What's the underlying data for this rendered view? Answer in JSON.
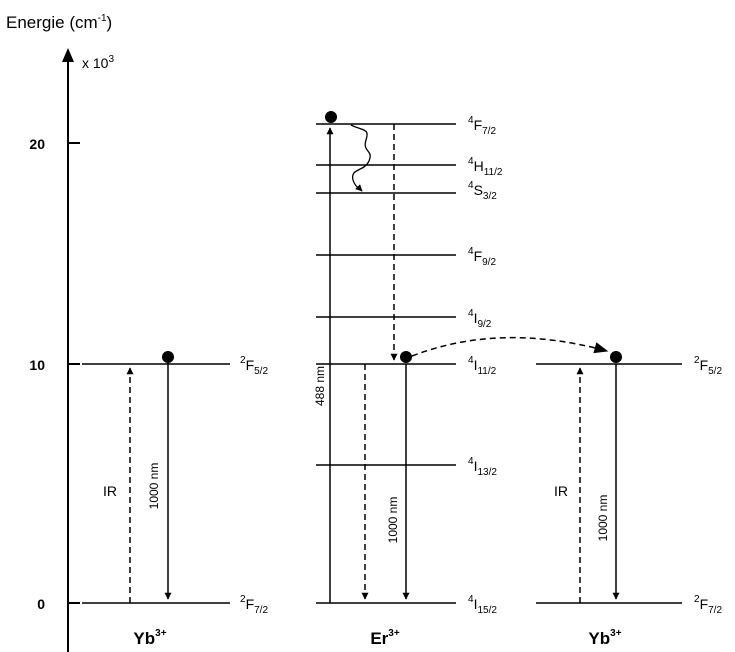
{
  "axis": {
    "title_main": "Energie (cm",
    "title_exp": "-1",
    "title_close": ")",
    "scale_prefix": "x 10",
    "scale_exp": "3",
    "ticks": [
      {
        "value": 0,
        "label": "0"
      },
      {
        "value": 10,
        "label": "10"
      },
      {
        "value": 20,
        "label": "20"
      }
    ]
  },
  "ions": [
    {
      "base": "Yb",
      "charge": "3+"
    },
    {
      "base": "Er",
      "charge": "3+"
    },
    {
      "base": "Yb",
      "charge": "3+"
    }
  ],
  "levels": {
    "yb_left": [
      {
        "energy": 0,
        "sup": "2",
        "letter": "F",
        "sub": "7/2"
      },
      {
        "energy": 10,
        "sup": "2",
        "letter": "F",
        "sub": "5/2"
      }
    ],
    "er": [
      {
        "energy": 0,
        "sup": "4",
        "letter": "I",
        "sub": "15/2"
      },
      {
        "energy": 5.8,
        "sup": "4",
        "letter": "I",
        "sub": "13/2"
      },
      {
        "energy": 10,
        "sup": "4",
        "letter": "I",
        "sub": "11/2"
      },
      {
        "energy": 12.2,
        "sup": "4",
        "letter": "I",
        "sub": "9/2"
      },
      {
        "energy": 14.9,
        "sup": "4",
        "letter": "F",
        "sub": "9/2"
      },
      {
        "energy": 17.9,
        "sup": "4",
        "letter": "S",
        "sub": "3/2"
      },
      {
        "energy": 19.1,
        "sup": "4",
        "letter": "H",
        "sub": "11/2"
      },
      {
        "energy": 20.8,
        "sup": "4",
        "letter": "F",
        "sub": "7/2"
      }
    ],
    "yb_right": [
      {
        "energy": 0,
        "sup": "2",
        "letter": "F",
        "sub": "7/2"
      },
      {
        "energy": 10,
        "sup": "2",
        "letter": "F",
        "sub": "5/2"
      }
    ]
  },
  "transitions": {
    "ir_label": "IR",
    "emission_label": "1000 nm",
    "excitation_label": "488 nm"
  }
}
